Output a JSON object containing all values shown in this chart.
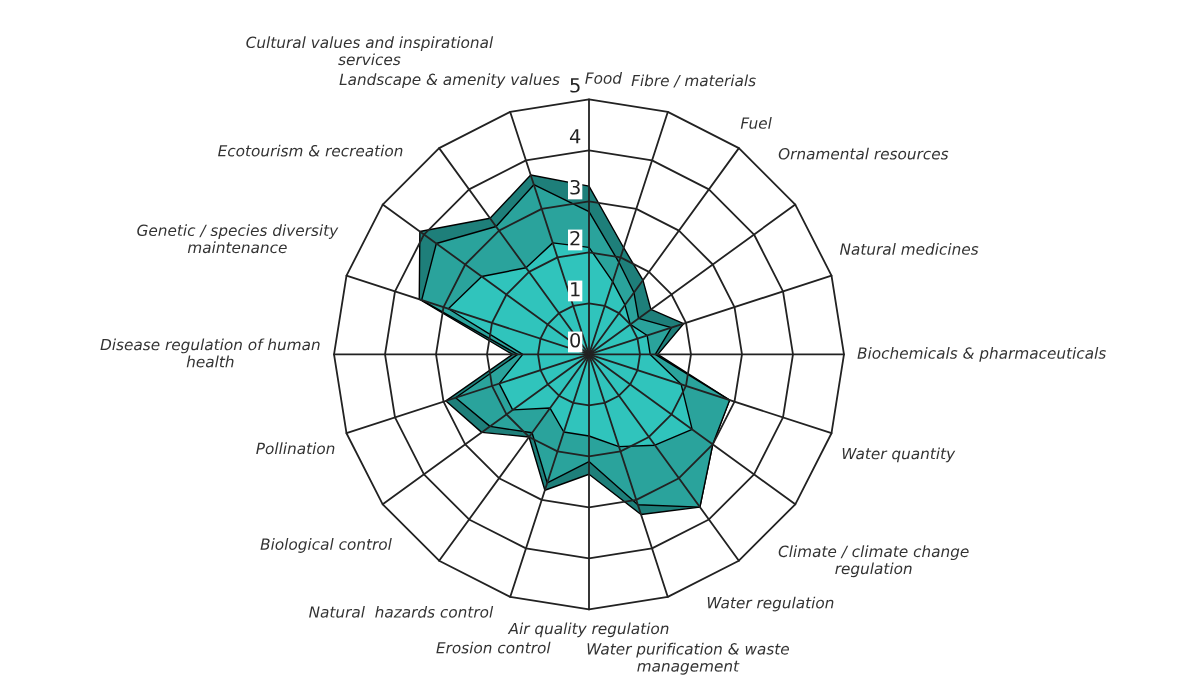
{
  "chart_data": {
    "type": "radar",
    "categories": [
      "Food",
      "Fibre / materials",
      "Fuel",
      "Ornamental resources",
      "Natural medicines",
      "Biochemicals & pharmaceuticals",
      "Water quantity",
      "Climate / climate change\nregulation",
      "Water regulation",
      "Water purification & waste\nmanagement",
      "Air quality regulation",
      "Erosion control",
      "Natural  hazards control",
      "Biological control",
      "Pollination",
      "Disease regulation of human\nhealth",
      "Genetic / species diversity\nmaintenance",
      "Ecotourism & recreation",
      "Cultural values and inspirational\nservices",
      "Landscape & amenity values"
    ],
    "series": [
      {
        "color": "#1e7f7a",
        "values": [
          3.3,
          2.2,
          1.8,
          1.5,
          1.95,
          1.35,
          2.9,
          3.0,
          3.7,
          3.3,
          2.35,
          2.8,
          2.0,
          2.6,
          2.95,
          1.5,
          3.5,
          4.1,
          3.3,
          3.7
        ]
      },
      {
        "color": "#2aa39c",
        "values": [
          2.8,
          1.9,
          1.5,
          1.2,
          1.7,
          1.3,
          2.9,
          3.0,
          3.7,
          3.1,
          2.1,
          2.65,
          1.9,
          2.4,
          2.75,
          1.4,
          3.45,
          3.7,
          3.1,
          3.5
        ]
      },
      {
        "color": "#30c4bc",
        "values": [
          2.1,
          1.5,
          1.2,
          1.0,
          1.2,
          1.2,
          1.9,
          2.5,
          2.2,
          1.9,
          1.6,
          1.6,
          1.3,
          1.85,
          1.85,
          1.3,
          2.9,
          2.6,
          2.1,
          2.3
        ]
      }
    ],
    "ylim": [
      0,
      5
    ],
    "yticks": [
      0,
      1,
      2,
      3,
      4,
      5
    ],
    "grid": true
  }
}
